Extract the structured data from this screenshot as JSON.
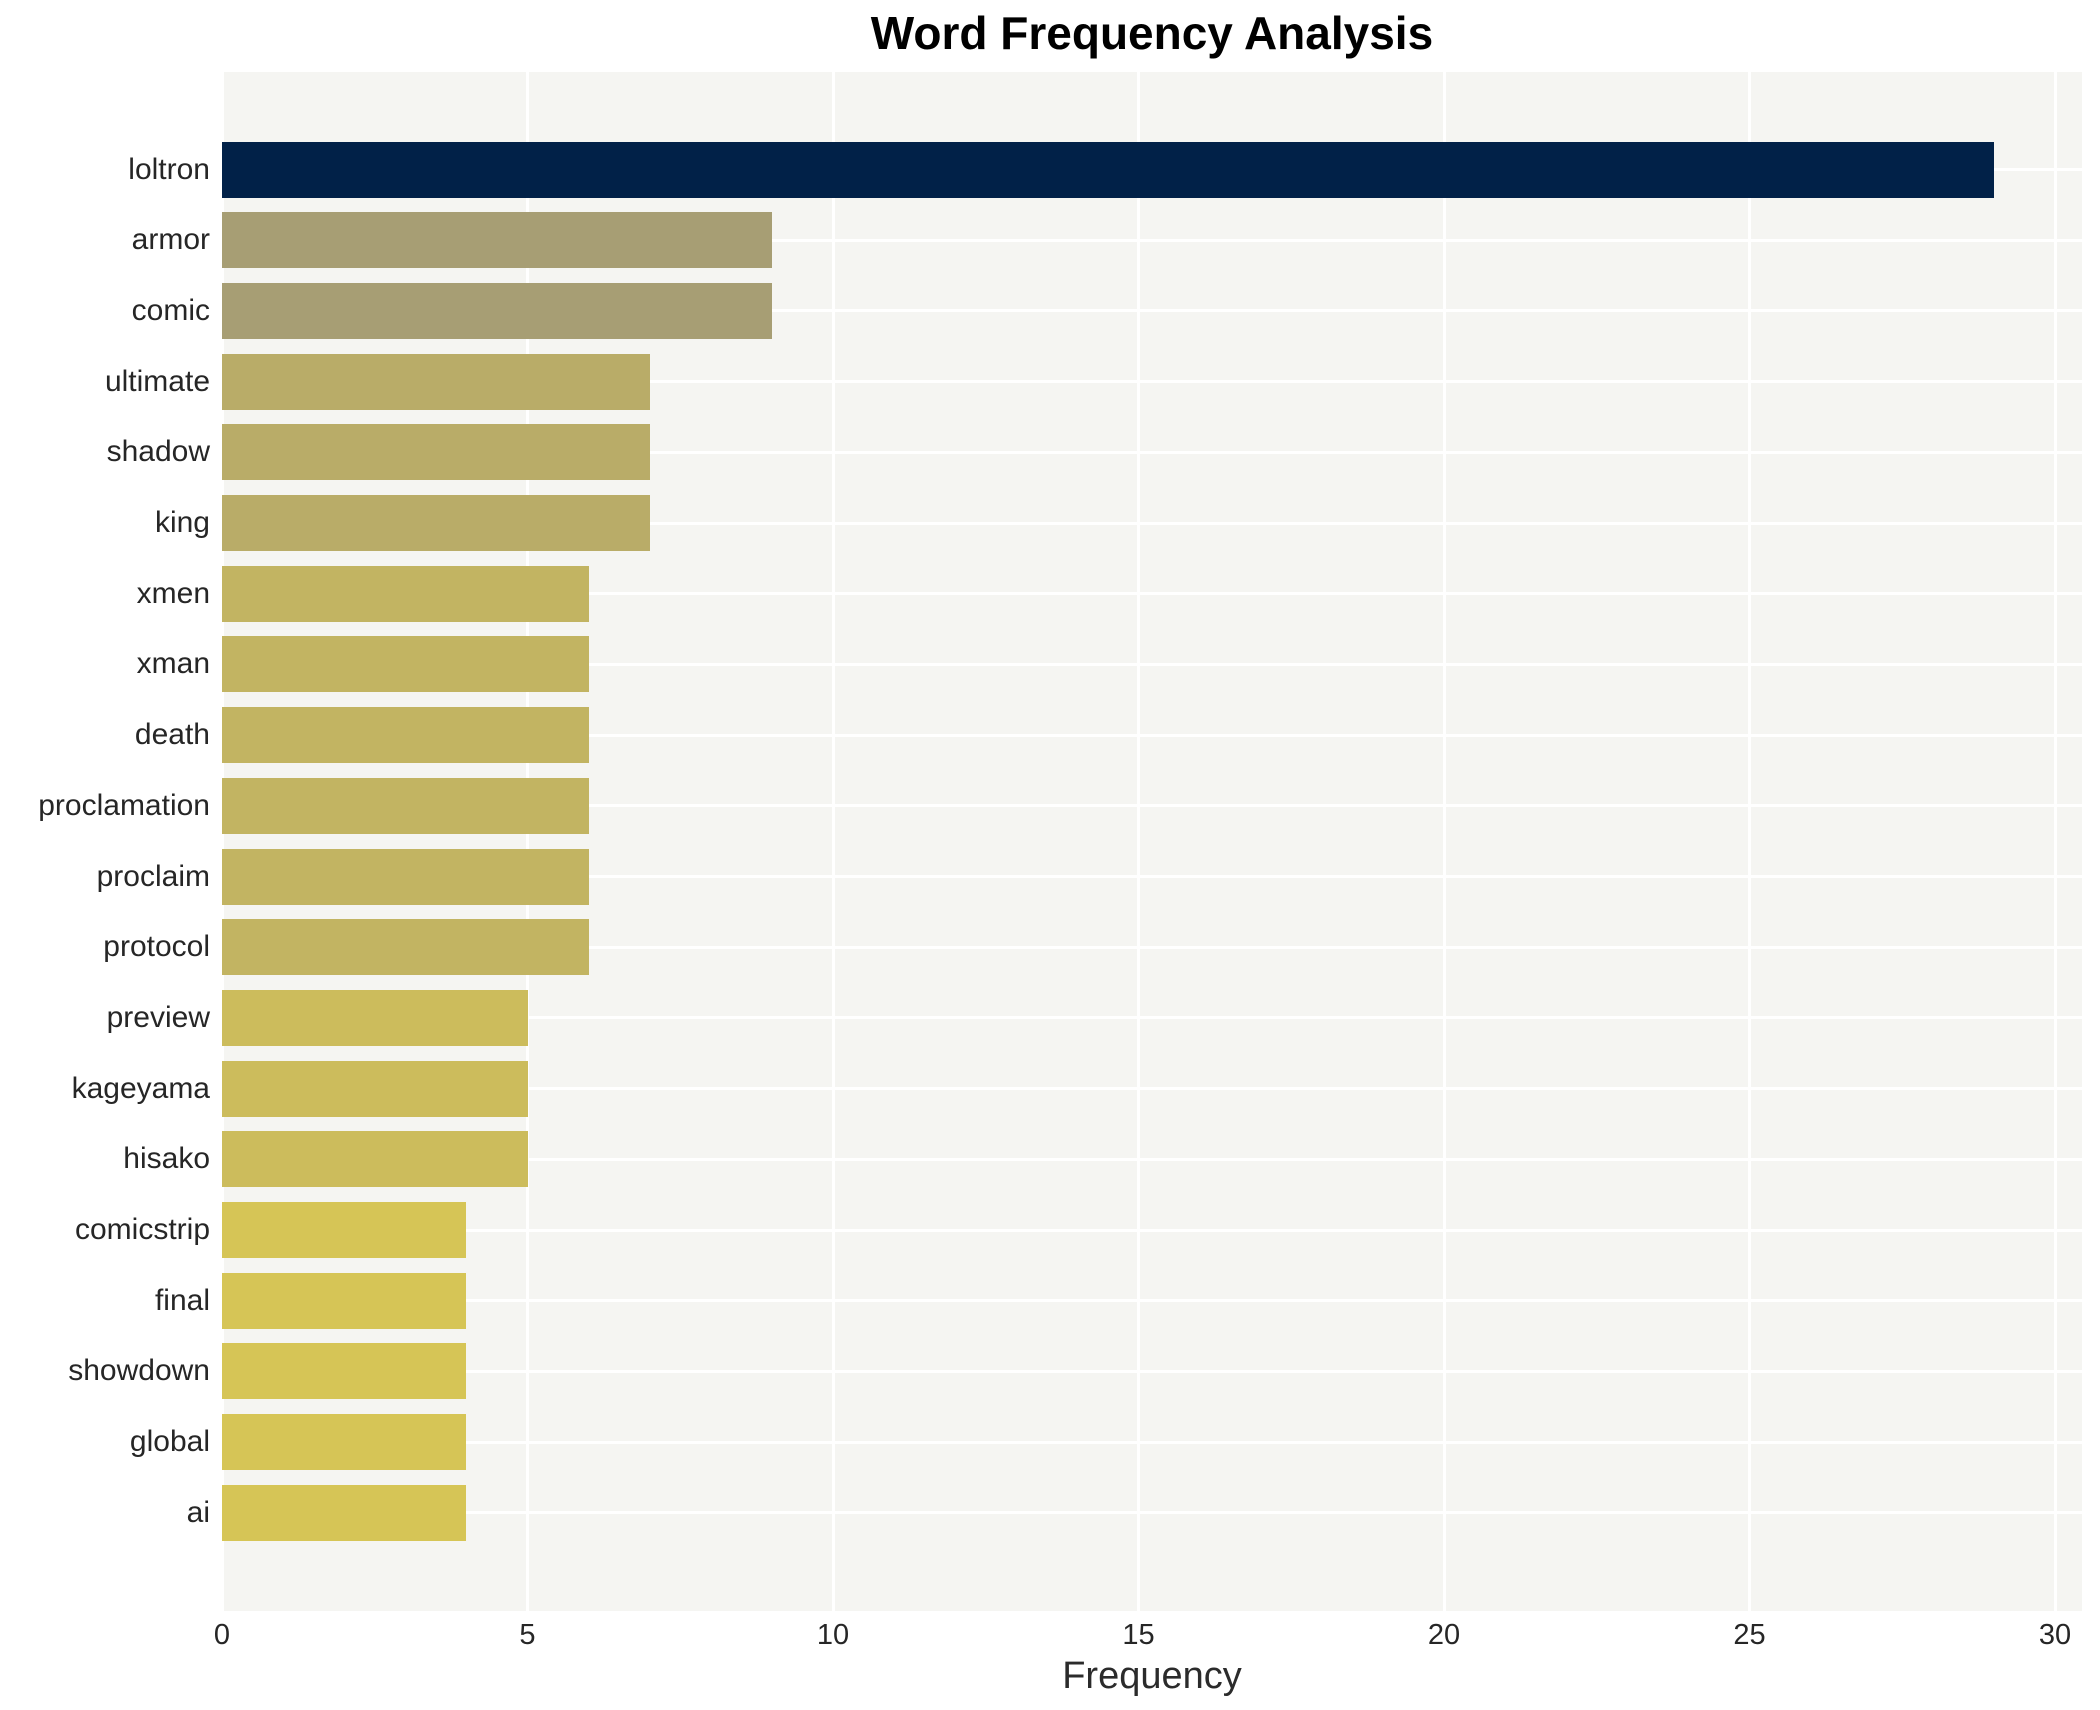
{
  "title": "Word Frequency Analysis",
  "chart_data": {
    "type": "bar",
    "orientation": "horizontal",
    "title": "Word Frequency Analysis",
    "xlabel": "Frequency",
    "ylabel": "",
    "categories": [
      "loltron",
      "armor",
      "comic",
      "ultimate",
      "shadow",
      "king",
      "xmen",
      "xman",
      "death",
      "proclamation",
      "proclaim",
      "protocol",
      "preview",
      "kageyama",
      "hisako",
      "comicstrip",
      "final",
      "showdown",
      "global",
      "ai"
    ],
    "values": [
      29,
      9,
      9,
      7,
      7,
      7,
      6,
      6,
      6,
      6,
      6,
      6,
      5,
      5,
      5,
      4,
      4,
      4,
      4,
      4
    ],
    "bar_colors": [
      "#012148",
      "#a79e74",
      "#a79e74",
      "#b9ac68",
      "#b9ac68",
      "#b9ac68",
      "#c2b462",
      "#c2b462",
      "#c2b462",
      "#c2b462",
      "#c2b462",
      "#c2b462",
      "#ccbc5c",
      "#ccbc5c",
      "#ccbc5c",
      "#d6c556",
      "#d6c556",
      "#d6c556",
      "#d6c556",
      "#d6c556"
    ],
    "x_ticks": [
      0,
      5,
      10,
      15,
      20,
      25,
      30
    ],
    "xlim": [
      0,
      30.4
    ],
    "grid": true,
    "legend": false,
    "plot_bg_color": "#f5f5f2",
    "grid_color": "#ffffff",
    "text_color": "#262626"
  }
}
